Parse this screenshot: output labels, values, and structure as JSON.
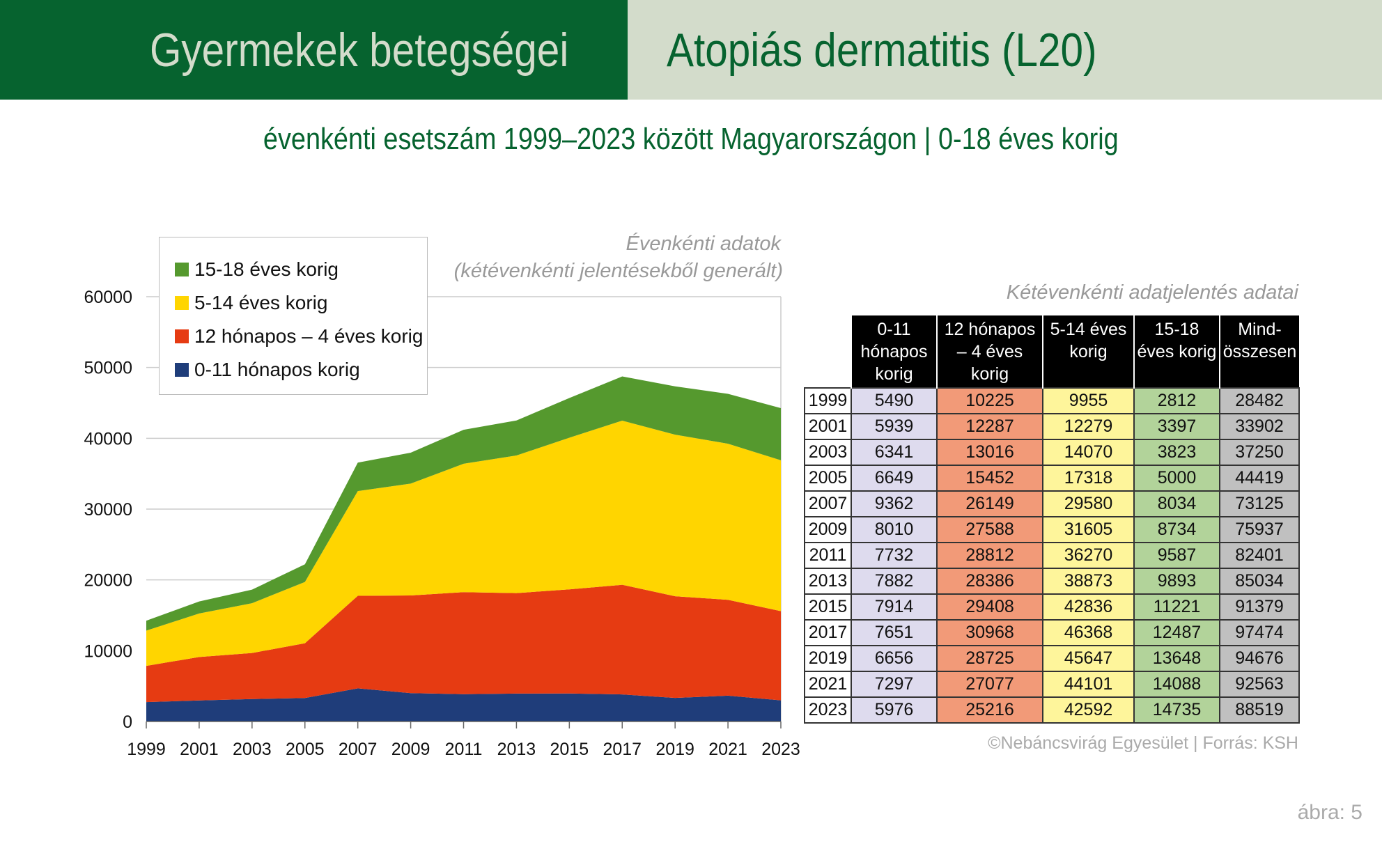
{
  "header": {
    "left_title": "Gyermekek betegségei",
    "right_title": "Atopiás dermatitis (L20)"
  },
  "subtitle": "évenkénti esetszám 1999–2023 között Magyarországon  |  0-18 éves korig",
  "chart_note": {
    "line1": "Évenkénti adatok",
    "line2": "(kétévenkénti jelentésekből generált)"
  },
  "table_title": "Kétévenkénti adatjelentés adatai",
  "credit": "©Nebáncsvirág Egyesület | Forrás: KSH",
  "figure_label": "ábra: 5",
  "colors": {
    "header_dark": "#06632f",
    "header_light": "#d3dccb"
  },
  "chart_data": {
    "type": "area",
    "stacked": true,
    "x": [
      1999,
      2001,
      2003,
      2005,
      2007,
      2009,
      2011,
      2013,
      2015,
      2017,
      2019,
      2021,
      2023
    ],
    "ylim": [
      0,
      60000
    ],
    "yticks": [
      0,
      10000,
      20000,
      30000,
      40000,
      50000,
      60000
    ],
    "grid": true,
    "legend_position": "top-left",
    "series": [
      {
        "name": "0-11 hónapos korig",
        "color": "#1f3d7a",
        "values": [
          2745,
          2970,
          3171,
          3325,
          4681,
          4005,
          3866,
          3941,
          3957,
          3826,
          3328,
          3649,
          2988
        ]
      },
      {
        "name": "12 hónapos – 4 éves korig",
        "color": "#e63b12",
        "values": [
          5113,
          6144,
          6508,
          7726,
          13075,
          13794,
          14406,
          14193,
          14704,
          15484,
          14363,
          13539,
          12608
        ]
      },
      {
        "name": "5-14 éves korig",
        "color": "#ffd500",
        "values": [
          4978,
          6140,
          7035,
          8659,
          14790,
          15803,
          18135,
          19437,
          21418,
          23184,
          22824,
          22051,
          21296
        ]
      },
      {
        "name": "15-18 éves korig",
        "color": "#55992e",
        "values": [
          1406,
          1699,
          1912,
          2500,
          4017,
          4367,
          4794,
          4947,
          5611,
          6244,
          6824,
          7044,
          7368
        ]
      }
    ]
  },
  "table": {
    "headers": [
      "0-11 hónapos korig",
      "12 hónapos – 4 éves korig",
      "5-14 éves korig",
      "15-18 éves korig",
      "Mind-összesen"
    ],
    "col_colors": [
      "#dedbee",
      "#f29a78",
      "#fef59b",
      "#b2d39a",
      "#c0c0c0"
    ],
    "rows": [
      [
        "1999",
        "5490",
        "10225",
        "9955",
        "2812",
        "28482"
      ],
      [
        "2001",
        "5939",
        "12287",
        "12279",
        "3397",
        "33902"
      ],
      [
        "2003",
        "6341",
        "13016",
        "14070",
        "3823",
        "37250"
      ],
      [
        "2005",
        "6649",
        "15452",
        "17318",
        "5000",
        "44419"
      ],
      [
        "2007",
        "9362",
        "26149",
        "29580",
        "8034",
        "73125"
      ],
      [
        "2009",
        "8010",
        "27588",
        "31605",
        "8734",
        "75937"
      ],
      [
        "2011",
        "7732",
        "28812",
        "36270",
        "9587",
        "82401"
      ],
      [
        "2013",
        "7882",
        "28386",
        "38873",
        "9893",
        "85034"
      ],
      [
        "2015",
        "7914",
        "29408",
        "42836",
        "11221",
        "91379"
      ],
      [
        "2017",
        "7651",
        "30968",
        "46368",
        "12487",
        "97474"
      ],
      [
        "2019",
        "6656",
        "28725",
        "45647",
        "13648",
        "94676"
      ],
      [
        "2021",
        "7297",
        "27077",
        "44101",
        "14088",
        "92563"
      ],
      [
        "2023",
        "5976",
        "25216",
        "42592",
        "14735",
        "88519"
      ]
    ]
  }
}
